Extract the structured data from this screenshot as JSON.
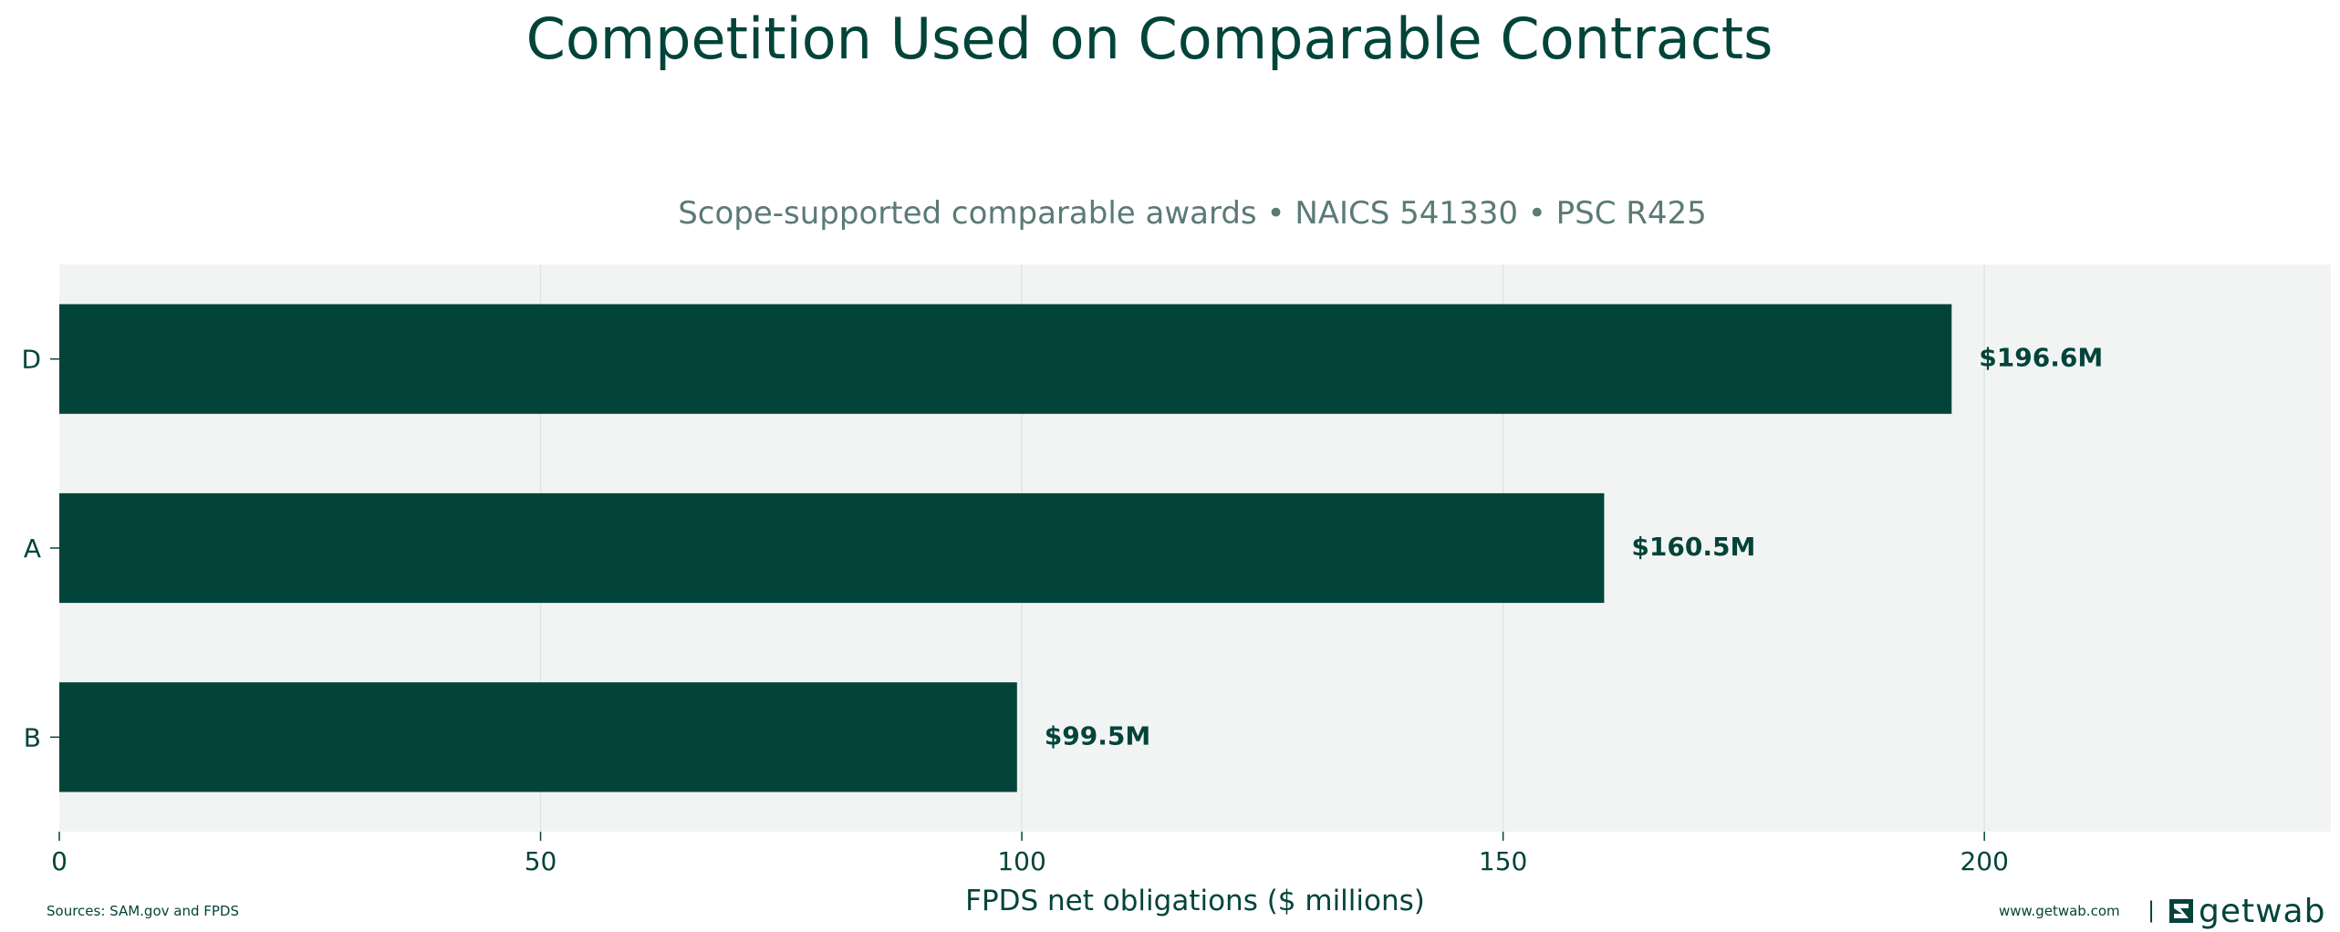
{
  "chart_data": {
    "type": "bar",
    "orientation": "horizontal",
    "title": "Competition Used on Comparable Contracts",
    "subtitle": "Scope-supported comparable awards • NAICS 541330 • PSC R425",
    "categories": [
      "D",
      "A",
      "B"
    ],
    "values": [
      196.6,
      160.5,
      99.5
    ],
    "value_labels": [
      "$196.6M",
      "$160.5M",
      "$99.5M"
    ],
    "xlabel": "FPDS net obligations ($ millions)",
    "ylabel": "",
    "xlim": [
      0,
      236
    ],
    "xticks": [
      0,
      50,
      100,
      150,
      200
    ],
    "grid": "vertical",
    "colors": {
      "bar": "#03443a",
      "plot_background": "#f2f4f3",
      "grid": "#dde6e3",
      "text": "#03443a",
      "subtitle": "#5b7a75"
    }
  },
  "footer": {
    "sources": "Sources: SAM.gov and FPDS",
    "website": "www.getwab.com",
    "separator": "|",
    "brand": "getwab",
    "brand_icon": "getwab-logo-icon"
  }
}
